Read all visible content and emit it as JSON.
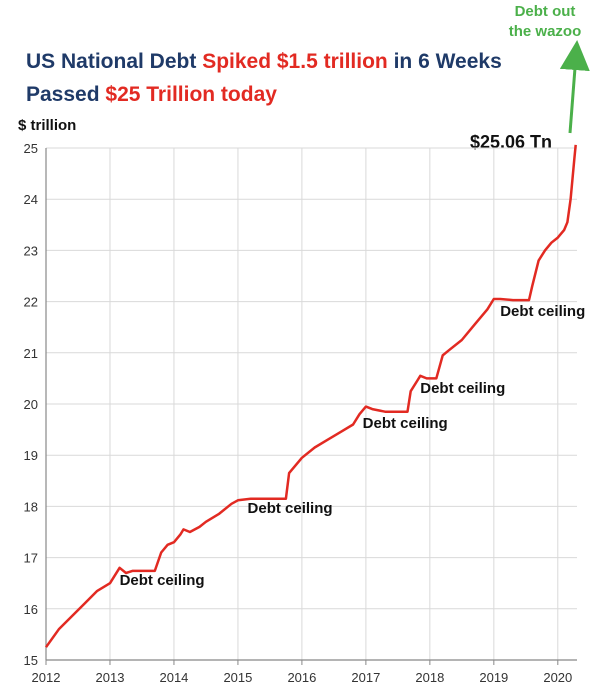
{
  "title": {
    "line1": [
      {
        "text": "US National Debt ",
        "color": "#1f3a68"
      },
      {
        "text": "Spiked $1.5 trillion",
        "color": "#e22a22"
      },
      {
        "text": " in 6 Weeks",
        "color": "#1f3a68"
      }
    ],
    "line2": [
      {
        "text": "Passed ",
        "color": "#1f3a68"
      },
      {
        "text": "$25 Trillion today",
        "color": "#e22a22"
      }
    ]
  },
  "annotations": {
    "end_value": "$25.06 Tn",
    "green_note_line1": "Debt out",
    "green_note_line2": "the wazoo",
    "debt_ceiling": [
      {
        "text": "Debt ceiling",
        "x": 2013.15,
        "y": 16.55
      },
      {
        "text": "Debt ceiling",
        "x": 2015.15,
        "y": 17.95
      },
      {
        "text": "Debt ceiling",
        "x": 2016.95,
        "y": 19.6
      },
      {
        "text": "Debt ceiling",
        "x": 2017.85,
        "y": 20.3
      },
      {
        "text": "Debt ceiling",
        "x": 2019.1,
        "y": 21.8
      }
    ]
  },
  "chart_data": {
    "type": "line",
    "title": "US National Debt Spiked $1.5 trillion in 6 Weeks / Passed $25 Trillion today",
    "xlabel": "",
    "ylabel": "$ trillion",
    "xlim": [
      2012,
      2020.3
    ],
    "ylim": [
      15,
      25
    ],
    "x_ticks": [
      2012,
      2013,
      2014,
      2015,
      2016,
      2017,
      2018,
      2019,
      2020
    ],
    "y_ticks": [
      15,
      16,
      17,
      18,
      19,
      20,
      21,
      22,
      23,
      24,
      25
    ],
    "grid": true,
    "line_color": "#e22a22",
    "series": [
      {
        "name": "",
        "x": [
          2012.0,
          2012.2,
          2012.4,
          2012.6,
          2012.8,
          2013.0,
          2013.15,
          2013.25,
          2013.35,
          2013.5,
          2013.7,
          2013.8,
          2013.9,
          2014.0,
          2014.1,
          2014.15,
          2014.25,
          2014.4,
          2014.5,
          2014.7,
          2014.9,
          2015.0,
          2015.2,
          2015.5,
          2015.75,
          2015.8,
          2015.9,
          2016.0,
          2016.2,
          2016.4,
          2016.6,
          2016.8,
          2016.9,
          2017.0,
          2017.1,
          2017.3,
          2017.5,
          2017.65,
          2017.7,
          2017.8,
          2017.85,
          2017.95,
          2018.1,
          2018.2,
          2018.3,
          2018.5,
          2018.7,
          2018.9,
          2019.0,
          2019.1,
          2019.3,
          2019.5,
          2019.55,
          2019.6,
          2019.7,
          2019.8,
          2019.9,
          2020.0,
          2020.1,
          2020.15,
          2020.2,
          2020.23,
          2020.26,
          2020.28
        ],
        "values": [
          15.25,
          15.6,
          15.85,
          16.1,
          16.35,
          16.5,
          16.8,
          16.7,
          16.74,
          16.74,
          16.74,
          17.1,
          17.25,
          17.3,
          17.45,
          17.55,
          17.5,
          17.6,
          17.7,
          17.85,
          18.05,
          18.12,
          18.15,
          18.15,
          18.15,
          18.65,
          18.8,
          18.95,
          19.15,
          19.3,
          19.45,
          19.6,
          19.8,
          19.95,
          19.9,
          19.85,
          19.85,
          19.85,
          20.25,
          20.45,
          20.55,
          20.5,
          20.5,
          20.95,
          21.05,
          21.25,
          21.55,
          21.85,
          22.05,
          22.05,
          22.03,
          22.03,
          22.03,
          22.3,
          22.8,
          23.0,
          23.15,
          23.25,
          23.4,
          23.55,
          24.0,
          24.4,
          24.8,
          25.06
        ]
      }
    ]
  }
}
